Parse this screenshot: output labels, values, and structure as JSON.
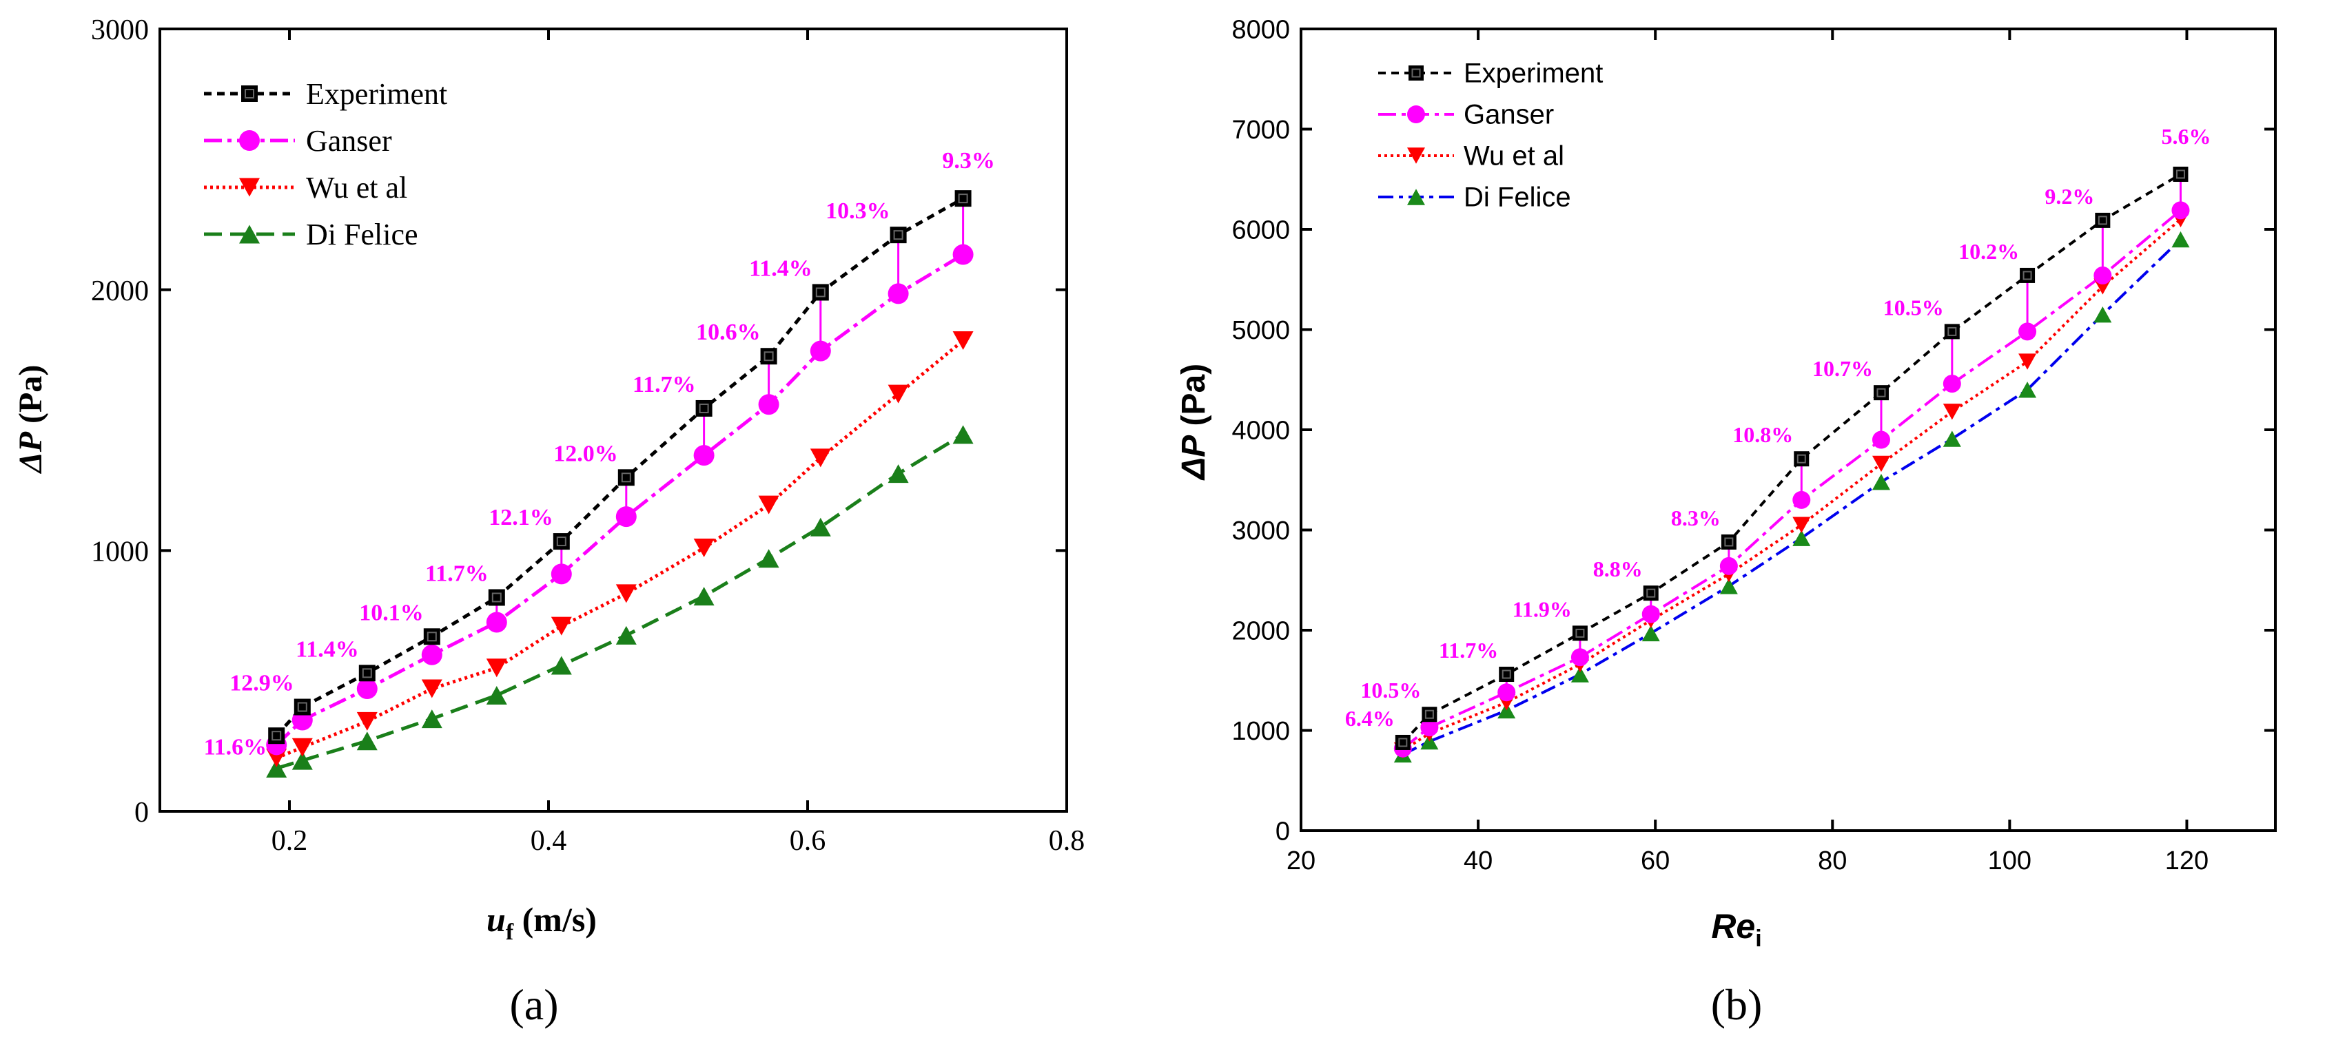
{
  "colors": {
    "experiment": "#000000",
    "ganser": "#ff00ff",
    "wu": "#ff0000",
    "difelice_a": "#1a7f1a",
    "difelice_b": "#0000ee",
    "difelice_marker": "#1a8a1a",
    "annotation": "#ff00ff"
  },
  "chart_data": [
    {
      "type": "line",
      "panel_label": "(a)",
      "ylabel_symbol": "ΔP",
      "ylabel_unit": " (Pa)",
      "xlabel_symbol": "u",
      "xlabel_sub": "f",
      "xlabel_unit": " (m/s)",
      "xlim": [
        0.1,
        0.8
      ],
      "ylim": [
        0,
        3000
      ],
      "xticks": [
        0.2,
        0.4,
        0.6,
        0.8
      ],
      "xtick_labels": [
        "0.2",
        "0.4",
        "0.6",
        "0.8"
      ],
      "yticks": [
        0,
        1000,
        2000,
        3000
      ],
      "ytick_labels": [
        "0",
        "1000",
        "2000",
        "3000"
      ],
      "legend": [
        "Experiment",
        "Ganser",
        "Wu et al",
        "Di Felice"
      ],
      "x": [
        0.19,
        0.21,
        0.26,
        0.31,
        0.36,
        0.41,
        0.46,
        0.52,
        0.57,
        0.61,
        0.67,
        0.72
      ],
      "series": [
        {
          "name": "Experiment",
          "values": [
            290,
            400,
            530,
            670,
            820,
            1035,
            1280,
            1545,
            1745,
            1990,
            2210,
            2350
          ]
        },
        {
          "name": "Ganser",
          "values": [
            255,
            350,
            470,
            600,
            725,
            910,
            1130,
            1365,
            1560,
            1765,
            1985,
            2135
          ]
        },
        {
          "name": "Wu et al",
          "values": [
            205,
            245,
            345,
            470,
            550,
            710,
            835,
            1010,
            1175,
            1355,
            1600,
            1805
          ]
        },
        {
          "name": "Di Felice",
          "values": [
            165,
            195,
            270,
            355,
            445,
            560,
            675,
            825,
            970,
            1090,
            1295,
            1445
          ]
        }
      ],
      "annotations": [
        "11.6%",
        "12.9%",
        "11.4%",
        "10.1%",
        "11.7%",
        "12.1%",
        "12.0%",
        "11.7%",
        "10.6%",
        "11.4%",
        "10.3%",
        "9.3%"
      ]
    },
    {
      "type": "line",
      "panel_label": "(b)",
      "ylabel_symbol": "ΔP",
      "ylabel_unit": " (Pa)",
      "xlabel_symbol": "Re",
      "xlabel_sub": "i",
      "xlabel_unit": "",
      "xlim": [
        20,
        130
      ],
      "ylim": [
        0,
        8000
      ],
      "xticks": [
        20,
        40,
        60,
        80,
        100,
        120
      ],
      "xtick_labels": [
        "20",
        "40",
        "60",
        "80",
        "100",
        "120"
      ],
      "yticks": [
        0,
        1000,
        2000,
        3000,
        4000,
        5000,
        6000,
        7000,
        8000
      ],
      "ytick_labels": [
        "0",
        "1000",
        "2000",
        "3000",
        "4000",
        "5000",
        "6000",
        "7000",
        "8000"
      ],
      "legend": [
        "Experiment",
        "Ganser",
        "Wu et al",
        "Di Felice"
      ],
      "x": [
        31.5,
        34.5,
        43.2,
        51.5,
        59.5,
        68.3,
        76.5,
        85.5,
        93.5,
        102,
        110.5,
        119.3
      ],
      "series": [
        {
          "name": "Experiment",
          "values": [
            880,
            1160,
            1560,
            1970,
            2370,
            2880,
            3710,
            4370,
            4980,
            5540,
            6090,
            6550
          ]
        },
        {
          "name": "Ganser",
          "values": [
            820,
            1030,
            1380,
            1730,
            2160,
            2640,
            3300,
            3900,
            4460,
            4980,
            5540,
            6190
          ]
        },
        {
          "name": "Wu et al",
          "values": [
            800,
            970,
            1280,
            1660,
            2100,
            2560,
            3050,
            3660,
            4180,
            4680,
            5430,
            6100
          ]
        },
        {
          "name": "Di Felice",
          "values": [
            760,
            890,
            1200,
            1560,
            1970,
            2440,
            2920,
            3480,
            3910,
            4400,
            5150,
            5900
          ]
        }
      ],
      "annotations": [
        "6.4%",
        "10.5%",
        "11.7%",
        "11.9%",
        "8.8%",
        "8.3%",
        "10.8%",
        "10.7%",
        "10.5%",
        "10.2%",
        "9.2%",
        "5.6%"
      ]
    }
  ]
}
